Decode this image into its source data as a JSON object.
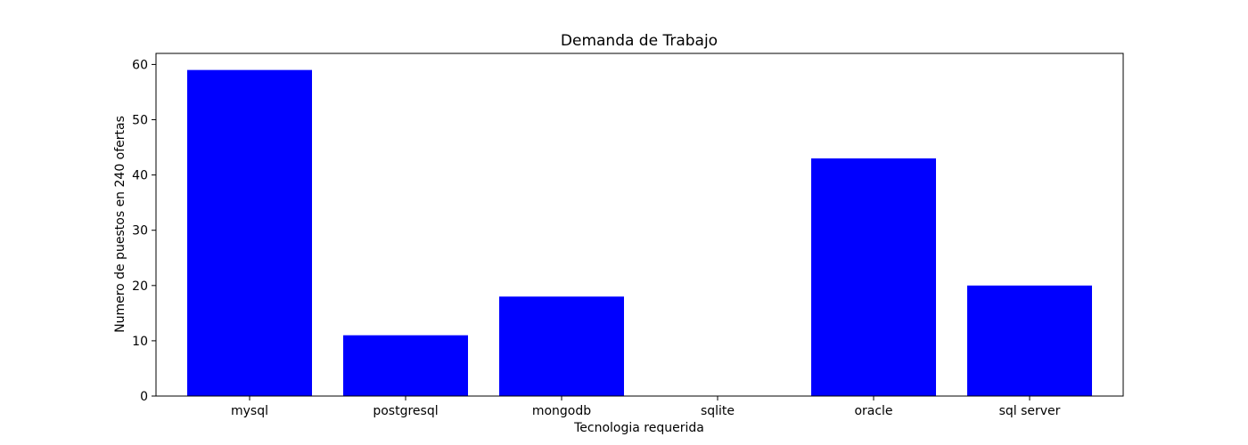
{
  "chart_data": {
    "type": "bar",
    "title": "Demanda de Trabajo",
    "xlabel": "Tecnologia requerida",
    "ylabel": "Numero de puestos en 240 ofertas",
    "categories": [
      "mysql",
      "postgresql",
      "mongodb",
      "sqlite",
      "oracle",
      "sql server"
    ],
    "values": [
      59,
      11,
      18,
      0,
      43,
      20
    ],
    "ylim": [
      0,
      62
    ],
    "yticks": [
      0,
      10,
      20,
      30,
      40,
      50,
      60
    ],
    "grid": false,
    "bar_color": "#0000ff"
  }
}
